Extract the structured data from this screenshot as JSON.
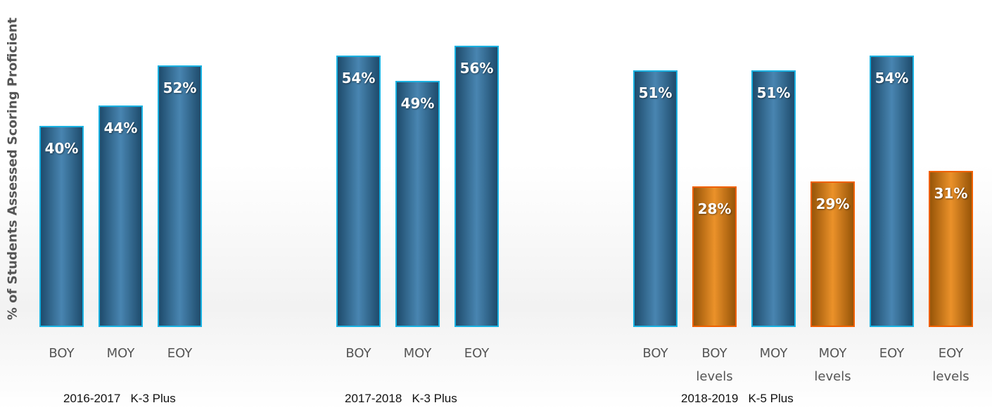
{
  "chart_data": {
    "type": "bar",
    "y_label": "% of Students Assessed Scoring Proficient",
    "groups": [
      {
        "label": "2016-2017   K-3 Plus",
        "categories": [
          "BOY",
          "MOY",
          "EOY"
        ],
        "values": [
          40,
          44,
          52
        ],
        "value_labels": [
          "40%",
          "44%",
          "52%"
        ],
        "colors": [
          "#2f74a6",
          "#2f74a6",
          "#2f74a6"
        ]
      },
      {
        "label": "2017-2018   K-3 Plus",
        "categories": [
          "BOY",
          "MOY",
          "EOY"
        ],
        "values": [
          54,
          49,
          56
        ],
        "value_labels": [
          "54%",
          "49%",
          "56%"
        ],
        "colors": [
          "#2f74a6",
          "#2f74a6",
          "#2f74a6"
        ]
      },
      {
        "label": "2018-2019   K-5 Plus",
        "categories": [
          "BOY",
          "BOY levels",
          "MOY",
          "MOY levels",
          "EOY",
          "EOY levels"
        ],
        "values": [
          51,
          28,
          51,
          29,
          54,
          31
        ],
        "value_labels": [
          "51%",
          "28%",
          "51%",
          "29%",
          "54%",
          "31%"
        ],
        "colors": [
          "#2f74a6",
          "#e8820c",
          "#2f74a6",
          "#e8820c",
          "#2f74a6",
          "#e8820c"
        ]
      }
    ]
  }
}
